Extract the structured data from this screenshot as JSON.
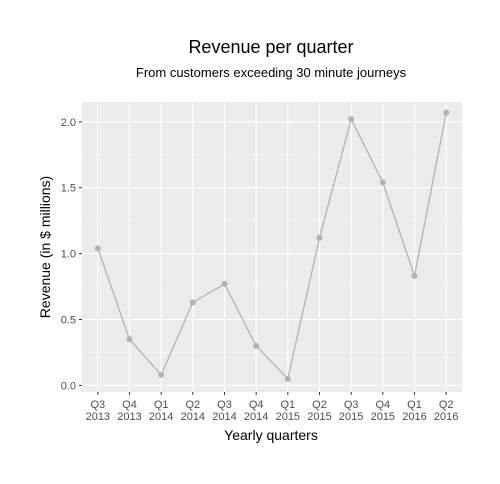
{
  "chart_data": {
    "type": "line",
    "title": "Revenue per quarter",
    "subtitle": "From customers exceeding 30 minute journeys",
    "xlabel": "Yearly quarters",
    "ylabel": "Revenue (in $ millions)",
    "categories": [
      [
        "Q3",
        "2013"
      ],
      [
        "Q4",
        "2013"
      ],
      [
        "Q1",
        "2014"
      ],
      [
        "Q2",
        "2014"
      ],
      [
        "Q3",
        "2014"
      ],
      [
        "Q4",
        "2014"
      ],
      [
        "Q1",
        "2015"
      ],
      [
        "Q2",
        "2015"
      ],
      [
        "Q3",
        "2015"
      ],
      [
        "Q4",
        "2015"
      ],
      [
        "Q1",
        "2016"
      ],
      [
        "Q2",
        "2016"
      ]
    ],
    "values": [
      1.04,
      0.35,
      0.08,
      0.63,
      0.77,
      0.3,
      0.05,
      1.12,
      2.02,
      1.54,
      0.83,
      2.07
    ],
    "yticks": [
      "0.0",
      "0.5",
      "1.0",
      "1.5",
      "2.0"
    ],
    "ylim": [
      -0.05,
      2.15
    ],
    "grid": true,
    "legend": "none",
    "colors": {
      "panel_background": "#ebebeb",
      "grid_major": "#ffffff",
      "grid_minor": "#f5f5f5",
      "line": "#b3b3b3",
      "point": "#b3b3b3"
    }
  }
}
